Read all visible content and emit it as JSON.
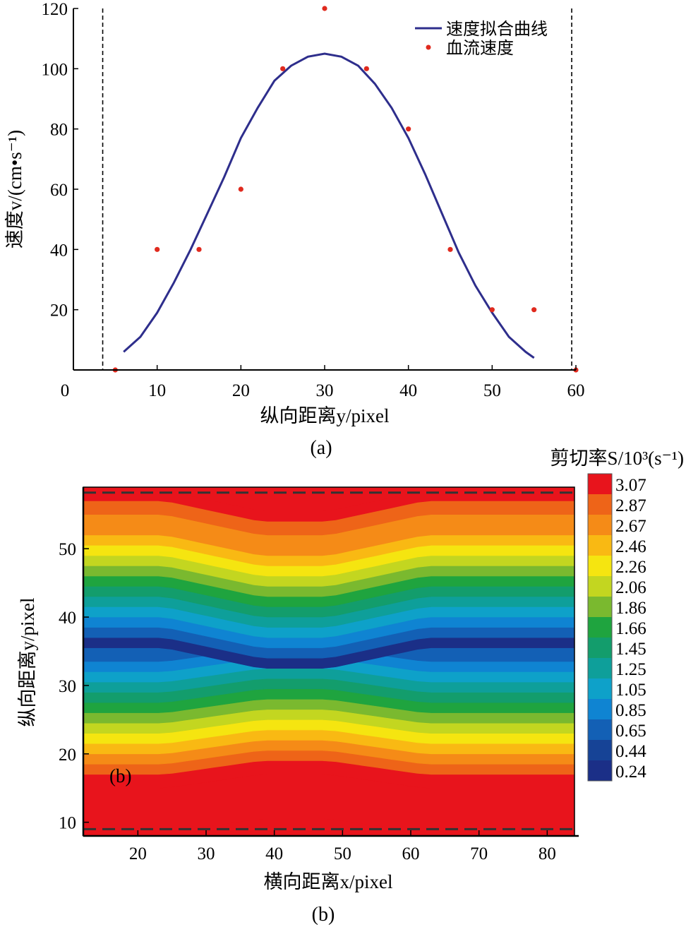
{
  "chart_data": [
    {
      "type": "line",
      "caption": "(a)",
      "xlabel": "纵向距离y/pixel",
      "ylabel": "速度v/(cm•s⁻¹)",
      "xlim": [
        0,
        60
      ],
      "ylim": [
        0,
        120
      ],
      "xticks": [
        0,
        10,
        20,
        30,
        40,
        50,
        60
      ],
      "yticks": [
        20,
        40,
        60,
        80,
        100,
        120
      ],
      "grid": false,
      "legend_position": "top-right",
      "boundary_lines_x": [
        3.5,
        59.5
      ],
      "series": [
        {
          "name": "速度拟合曲线",
          "style": "line",
          "color": "#2e2e8c",
          "x": [
            6,
            8,
            10,
            12,
            14,
            16,
            18,
            20,
            22,
            24,
            26,
            28,
            30,
            32,
            34,
            36,
            38,
            40,
            42,
            44,
            46,
            48,
            50,
            52,
            54,
            55
          ],
          "y": [
            6,
            11,
            19,
            29,
            40,
            52,
            64,
            77,
            87,
            96,
            101,
            104,
            105,
            104,
            101,
            95,
            87,
            77,
            65,
            52,
            39,
            28,
            19,
            11,
            6,
            4
          ]
        },
        {
          "name": "血流速度",
          "style": "scatter",
          "color": "#e02a1e",
          "x": [
            5,
            10,
            15,
            20,
            25,
            30,
            35,
            40,
            45,
            50,
            55,
            60
          ],
          "y": [
            0,
            40,
            40,
            60,
            100,
            120,
            100,
            80,
            40,
            20,
            20,
            0
          ]
        }
      ]
    },
    {
      "type": "heatmap",
      "caption": "(b)",
      "inner_label": "(b)",
      "xlabel": "横向距离x/pixel",
      "ylabel": "纵向距离y/pixel",
      "xlim": [
        12,
        84
      ],
      "ylim": [
        8,
        59
      ],
      "xticks": [
        20,
        30,
        40,
        50,
        60,
        70,
        80
      ],
      "yticks": [
        10,
        20,
        30,
        40,
        50
      ],
      "colorbar_title": "剪切率S/10³(s⁻¹)",
      "colorbar_levels": [
        "3.07",
        "2.87",
        "2.67",
        "2.46",
        "2.26",
        "2.06",
        "1.86",
        "1.66",
        "1.45",
        "1.25",
        "1.05",
        "0.85",
        "0.65",
        "0.44",
        "0.24"
      ],
      "colorbar_colors": [
        "#e8141c",
        "#ee6418",
        "#f58b17",
        "#f9b913",
        "#f5e510",
        "#c3d620",
        "#7ab92f",
        "#1fa43f",
        "#139d6c",
        "#0e9f9a",
        "#0ea1c9",
        "#0f84d2",
        "#1360b5",
        "#164396",
        "#1b2f87"
      ],
      "band_profile_y": [
        8.5,
        15,
        17,
        18.5,
        20,
        21.5,
        23,
        24.5,
        26,
        27.5,
        29,
        30.5,
        32,
        33.5,
        35.5,
        37,
        38.5,
        40,
        41.5,
        43,
        44.5,
        46,
        47.5,
        49,
        50.5,
        52,
        55,
        57,
        58.5
      ],
      "band_profile_level": [
        0,
        0,
        1,
        2,
        3,
        4,
        5,
        6,
        7,
        8,
        9,
        10,
        11,
        12,
        14,
        12,
        11,
        10,
        9,
        8,
        7,
        6,
        5,
        4,
        3,
        2,
        1,
        0,
        1
      ],
      "center_region": {
        "x_range": [
          38,
          48
        ],
        "shift_y_lower": 2,
        "shift_y_upper": -3
      }
    }
  ]
}
